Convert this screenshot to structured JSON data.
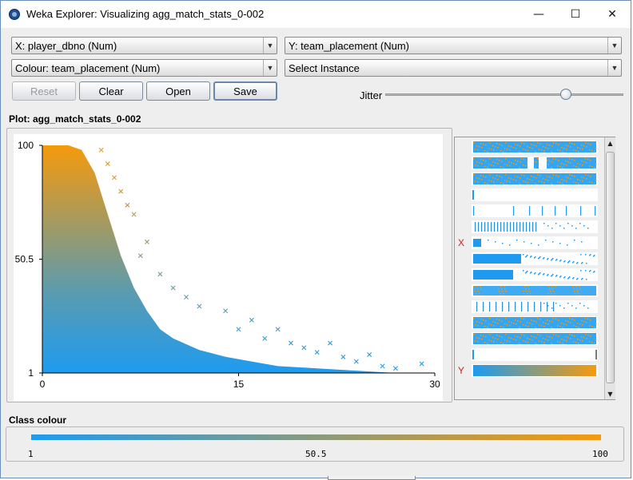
{
  "window": {
    "title": "Weka Explorer: Visualizing agg_match_stats_0-002"
  },
  "controls": {
    "x_axis": "X: player_dbno (Num)",
    "y_axis": "Y: team_placement (Num)",
    "colour": "Colour: team_placement (Num)",
    "instance": "Select Instance",
    "reset": "Reset",
    "clear": "Clear",
    "open": "Open",
    "save": "Save",
    "jitter_label": "Jitter",
    "jitter_level": 0.76
  },
  "plot": {
    "title": "Plot: agg_match_stats_0-002",
    "y_ticks": [
      "100",
      "50.5",
      "1"
    ],
    "x_ticks": [
      "0",
      "15",
      "30"
    ]
  },
  "attribute_panel": {
    "x_marker": "X",
    "y_marker": "Y"
  },
  "class_colour": {
    "label": "Class colour",
    "ticks": [
      "1",
      "50.5",
      "100"
    ],
    "low_color": "#1e9bf0",
    "high_color": "#f59a0c"
  },
  "chart_data": {
    "type": "scatter",
    "title": "Plot: agg_match_stats_0-002",
    "xlabel": "player_dbno",
    "ylabel": "team_placement",
    "xlim": [
      0,
      30
    ],
    "ylim": [
      1,
      100
    ],
    "colour_by": "team_placement",
    "density_bounds": [
      [
        0,
        100
      ],
      [
        2,
        100
      ],
      [
        3,
        98
      ],
      [
        4,
        88
      ],
      [
        5,
        70
      ],
      [
        6,
        52
      ],
      [
        7,
        38
      ],
      [
        8,
        28
      ],
      [
        9,
        20
      ],
      [
        10,
        16
      ],
      [
        12,
        11
      ],
      [
        14,
        8
      ],
      [
        16,
        6
      ],
      [
        18,
        4
      ],
      [
        21,
        3
      ],
      [
        24,
        2
      ],
      [
        27,
        1
      ]
    ],
    "outliers": [
      [
        4.5,
        98
      ],
      [
        5,
        92
      ],
      [
        5.5,
        86
      ],
      [
        6,
        80
      ],
      [
        6.5,
        74
      ],
      [
        7,
        70
      ],
      [
        8,
        58
      ],
      [
        7.5,
        52
      ],
      [
        9,
        44
      ],
      [
        10,
        38
      ],
      [
        11,
        34
      ],
      [
        12,
        30
      ],
      [
        14,
        28
      ],
      [
        15,
        20
      ],
      [
        16,
        24
      ],
      [
        17,
        16
      ],
      [
        18,
        20
      ],
      [
        19,
        14
      ],
      [
        20,
        12
      ],
      [
        21,
        10
      ],
      [
        22,
        14
      ],
      [
        23,
        8
      ],
      [
        24,
        6
      ],
      [
        25,
        9
      ],
      [
        26,
        4
      ],
      [
        27,
        3
      ],
      [
        29,
        5
      ]
    ]
  }
}
